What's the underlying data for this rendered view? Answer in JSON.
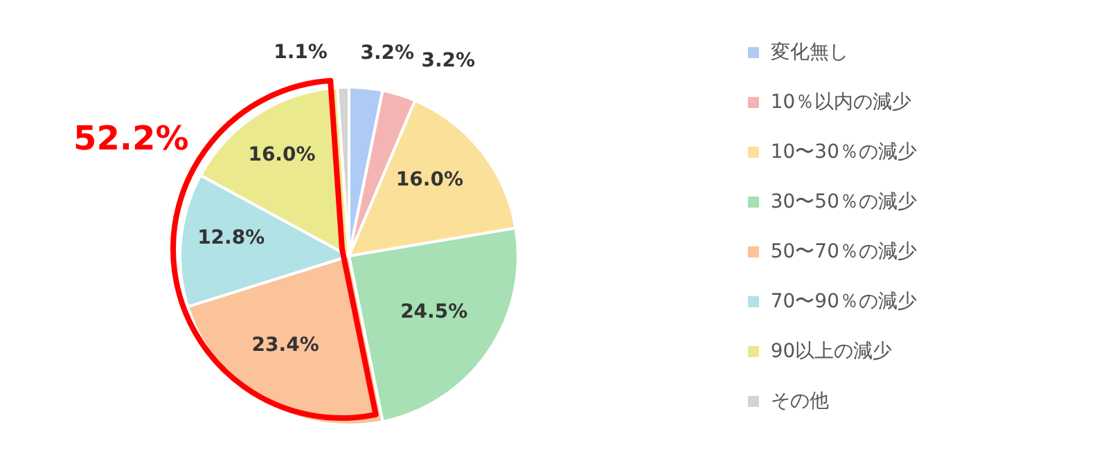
{
  "chart_data": {
    "type": "pie",
    "categories": [
      "変化無し",
      "10％以内の減少",
      "10〜30％の減少",
      "30〜50％の減少",
      "50〜70％の減少",
      "70〜90％の減少",
      "90以上の減少",
      "その他"
    ],
    "values": [
      3.2,
      3.2,
      16.0,
      24.5,
      23.4,
      12.8,
      16.0,
      1.1
    ],
    "value_labels": [
      "3.2%",
      "3.2%",
      "16.0%",
      "24.5%",
      "23.4%",
      "12.8%",
      "16.0%",
      "1.1%"
    ],
    "colors": [
      "#aecbf5",
      "#f4b4b4",
      "#fbe09a",
      "#a6e0b4",
      "#fbc39a",
      "#b0e2e6",
      "#ebe98e",
      "#d3d3d3"
    ],
    "legend": "right",
    "annotations": [
      "52.2%"
    ]
  }
}
